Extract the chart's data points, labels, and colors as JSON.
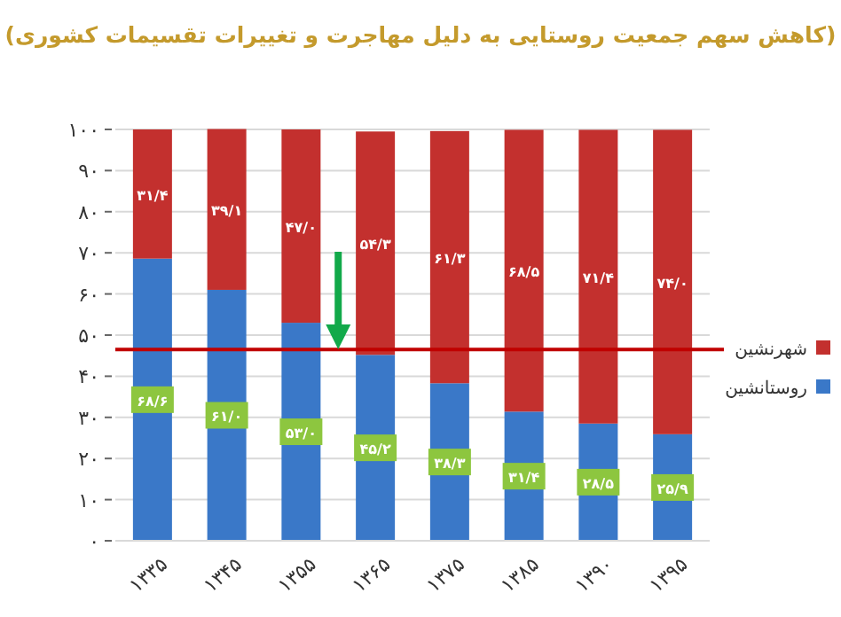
{
  "chart_data": {
    "type": "bar",
    "stacked": true,
    "title": "(کاهش سهم جمعیت روستایی به دلیل مهاجرت و تغییرات تقسیمات کشوری)",
    "categories": [
      "۱۳۳۵",
      "۱۳۴۵",
      "۱۳۵۵",
      "۱۳۶۵",
      "۱۳۷۵",
      "۱۳۸۵",
      "۱۳۹۰",
      "۱۳۹۵"
    ],
    "series": [
      {
        "name": "روستانشین",
        "color": "#3a78c8",
        "values": [
          68.6,
          61.0,
          53.0,
          45.2,
          38.3,
          31.4,
          28.5,
          25.9
        ],
        "value_labels": [
          "۶۸/۶",
          "۶۱/۰",
          "۵۳/۰",
          "۴۵/۲",
          "۳۸/۳",
          "۳۱/۴",
          "۲۸/۵",
          "۲۵/۹"
        ]
      },
      {
        "name": "شهرنشین",
        "color": "#c3302e",
        "values": [
          31.4,
          39.1,
          47.0,
          54.3,
          61.3,
          68.5,
          71.4,
          74.0
        ],
        "value_labels": [
          "۳۱/۴",
          "۳۹/۱",
          "۴۷/۰",
          "۵۴/۳",
          "۶۱/۳",
          "۶۸/۵",
          "۷۱/۴",
          "۷۴/۰"
        ]
      }
    ],
    "ylim": [
      0,
      100
    ],
    "yticks": [
      {
        "value": 0,
        "label": "۰"
      },
      {
        "value": 10,
        "label": "۱۰"
      },
      {
        "value": 20,
        "label": "۲۰"
      },
      {
        "value": 30,
        "label": "۳۰"
      },
      {
        "value": 40,
        "label": "۴۰"
      },
      {
        "value": 50,
        "label": "۵۰"
      },
      {
        "value": 60,
        "label": "۶۰"
      },
      {
        "value": 70,
        "label": "۷۰"
      },
      {
        "value": 80,
        "label": "۸۰"
      },
      {
        "value": 90,
        "label": "۹۰"
      },
      {
        "value": 100,
        "label": "۱۰۰"
      }
    ],
    "ref_lines": [
      {
        "axis": "y",
        "value": 46.5,
        "color": "#c00000"
      }
    ],
    "grid": "y",
    "legend": "right"
  }
}
